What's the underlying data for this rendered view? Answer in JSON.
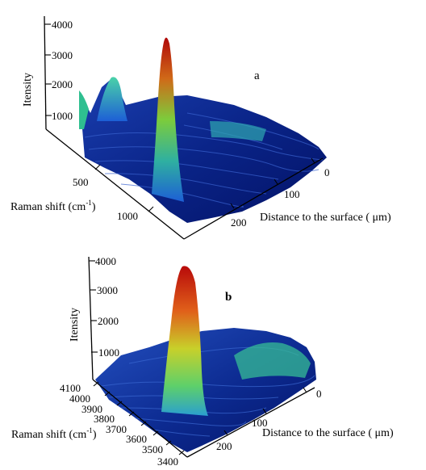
{
  "chart_data": [
    {
      "type": "surface",
      "panel_label": "a",
      "zlabel": "Itensity",
      "xlabel": "Raman shift (cm",
      "xlabel_sup": "-1",
      "xlabel_close": ")",
      "ylabel": "Distance to the surface ( μm)",
      "z_ticks": [
        "4000",
        "3000",
        "2000",
        "1000"
      ],
      "z_values": [
        4000,
        3000,
        2000,
        1000
      ],
      "x_ticks": [
        "500",
        "1000"
      ],
      "y_ticks": [
        "0",
        "100",
        "200"
      ],
      "colormap": [
        "#000c6e",
        "#0a2fa6",
        "#1d5fd6",
        "#27a8d8",
        "#3fd5a0",
        "#8fdc3a",
        "#e0d020",
        "#e07010",
        "#c81010",
        "#8c0000"
      ],
      "peaks": [
        {
          "raman_shift_cm-1": 1000,
          "distance_um": 10,
          "intensity": 3800
        },
        {
          "raman_shift_cm-1": 1000,
          "distance_um": 120,
          "intensity": 3500
        },
        {
          "raman_shift_cm-1": 400,
          "distance_um": 0,
          "intensity": 2300
        }
      ]
    },
    {
      "type": "surface",
      "panel_label": "b",
      "zlabel": "Itensity",
      "xlabel": "Raman shift (cm",
      "xlabel_sup": "-1",
      "xlabel_close": ")",
      "ylabel": "Distance to the surface ( μm)",
      "z_ticks": [
        "4000",
        "3000",
        "2000",
        "1000"
      ],
      "z_values": [
        4000,
        3000,
        2000,
        1000
      ],
      "x_ticks": [
        "4100",
        "4000",
        "3900",
        "3800",
        "3700",
        "3600",
        "3500",
        "3400"
      ],
      "y_ticks": [
        "0",
        "100",
        "200"
      ],
      "colormap": [
        "#000c6e",
        "#0a2fa6",
        "#1d5fd6",
        "#27a8d8",
        "#3fd5a0",
        "#8fdc3a",
        "#e0d020",
        "#e07010",
        "#c81010",
        "#8c0000"
      ],
      "peaks": [
        {
          "raman_shift_cm-1": 3700,
          "distance_um": 130,
          "intensity": 4000
        },
        {
          "raman_shift_cm-1": 3450,
          "distance_um": 20,
          "intensity": 1400
        }
      ]
    }
  ]
}
